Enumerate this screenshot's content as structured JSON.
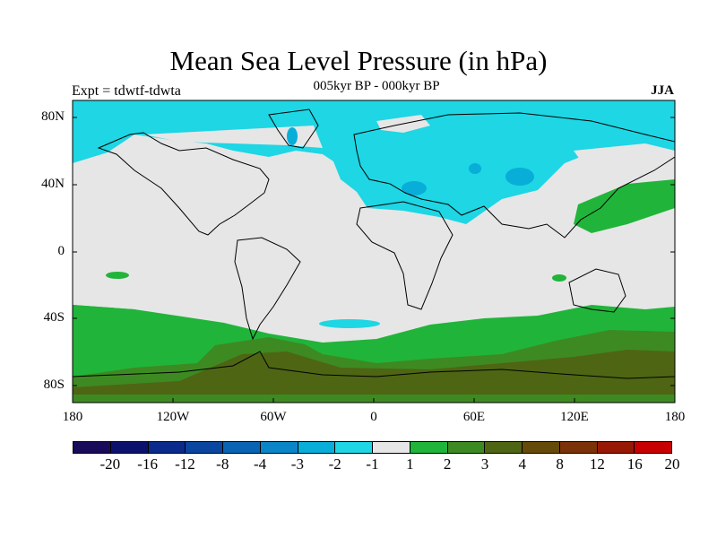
{
  "title": "Mean Sea Level Pressure (in hPa)",
  "subtitle": "005kyr BP - 000kyr BP",
  "left_label": "Expt = tdwtf-tdwta",
  "right_label": "JJA",
  "y_ticks": [
    "80N",
    "40N",
    "0",
    "40S",
    "80S"
  ],
  "x_ticks": [
    "180",
    "120W",
    "60W",
    "0",
    "60E",
    "120E",
    "180"
  ],
  "legend": {
    "labels": [
      "-20",
      "-16",
      "-12",
      "-8",
      "-4",
      "-3",
      "-2",
      "-1",
      "1",
      "2",
      "3",
      "4",
      "8",
      "12",
      "16",
      "20"
    ],
    "colors": [
      "#1a0a5a",
      "#0b126e",
      "#0a2a8c",
      "#0a45a0",
      "#0a64b4",
      "#0a86c8",
      "#08aed8",
      "#1ed6e4",
      "#e6e6e6",
      "#21b43a",
      "#3d8a22",
      "#4e6514",
      "#664a0a",
      "#7c3208",
      "#981806",
      "#c80000"
    ]
  },
  "palette": {
    "neutral": "#e6e6e6",
    "cyan": "#1ed6e4",
    "blue": "#08aed8",
    "green": "#21b43a",
    "dark_green": "#4e6514",
    "olive": "#3d8a22"
  }
}
